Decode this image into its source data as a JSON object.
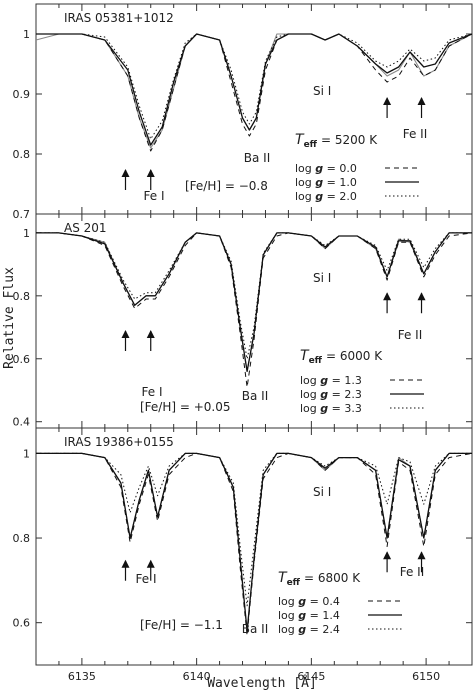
{
  "chart_data": [
    {
      "type": "line",
      "panel_label": "IRAS 05381+1012",
      "xlim": [
        6133,
        6152
      ],
      "ylim": [
        0.7,
        1.05
      ],
      "yticks": [
        0.7,
        0.8,
        0.9,
        1
      ],
      "ytick_labels": [
        "0.7",
        "0.8",
        "0.9",
        "1"
      ],
      "x": [
        6133,
        6134,
        6135,
        6136,
        6137,
        6137.5,
        6138,
        6138.5,
        6139,
        6139.5,
        6140,
        6141,
        6141.5,
        6142,
        6142.3,
        6142.6,
        6143,
        6143.5,
        6144,
        6145,
        6145.6,
        6146.2,
        6147,
        6147.8,
        6148.3,
        6148.8,
        6149.3,
        6149.9,
        6150.4,
        6151,
        6152
      ],
      "series": [
        {
          "name": "observed",
          "values": [
            0.99,
            1.0,
            1.0,
            0.99,
            0.93,
            0.86,
            0.81,
            0.84,
            0.91,
            0.98,
            1.0,
            0.99,
            0.93,
            0.86,
            0.84,
            0.86,
            0.95,
            1.0,
            1.0,
            1.0,
            0.99,
            1.0,
            0.98,
            0.95,
            0.93,
            0.94,
            0.97,
            0.93,
            0.94,
            0.98,
            1.0
          ]
        },
        {
          "name": "log g = 0.0",
          "values": [
            1.0,
            1.0,
            1.0,
            0.99,
            0.93,
            0.86,
            0.805,
            0.84,
            0.91,
            0.98,
            1.0,
            0.99,
            0.92,
            0.85,
            0.83,
            0.85,
            0.94,
            0.99,
            1.0,
            1.0,
            0.99,
            1.0,
            0.98,
            0.94,
            0.92,
            0.93,
            0.96,
            0.93,
            0.94,
            0.98,
            1.0
          ]
        },
        {
          "name": "log g = 1.0",
          "values": [
            1.0,
            1.0,
            1.0,
            0.99,
            0.94,
            0.87,
            0.815,
            0.845,
            0.92,
            0.98,
            1.0,
            0.99,
            0.93,
            0.86,
            0.84,
            0.86,
            0.95,
            0.99,
            1.0,
            1.0,
            0.99,
            1.0,
            0.98,
            0.95,
            0.935,
            0.945,
            0.97,
            0.945,
            0.95,
            0.985,
            1.0
          ]
        },
        {
          "name": "log g = 2.0",
          "values": [
            1.0,
            1.0,
            1.0,
            0.995,
            0.945,
            0.88,
            0.825,
            0.855,
            0.925,
            0.985,
            1.0,
            0.99,
            0.94,
            0.87,
            0.85,
            0.87,
            0.955,
            0.995,
            1.0,
            1.0,
            0.99,
            1.0,
            0.985,
            0.955,
            0.945,
            0.955,
            0.975,
            0.955,
            0.96,
            0.99,
            1.0
          ]
        }
      ],
      "annotations": {
        "si": "Si I",
        "fe1": "Fe I",
        "ba2": "Ba II",
        "fe2": "Fe II",
        "feh": "[Fe/H] = −0.8",
        "teff_label": "T",
        "teff_sub": "eff",
        "teff_value": "= 5200 K",
        "legend": [
          {
            "prefix": "log ",
            "g": "g",
            "value": " = 0.0",
            "style": "dashed"
          },
          {
            "prefix": "log ",
            "g": "g",
            "value": " = 1.0",
            "style": "solid"
          },
          {
            "prefix": "log ",
            "g": "g",
            "value": " = 2.0",
            "style": "dotted"
          }
        ]
      }
    },
    {
      "type": "line",
      "panel_label": "AS 201",
      "xlim": [
        6133,
        6152
      ],
      "ylim": [
        0.38,
        1.06
      ],
      "yticks": [
        0.4,
        0.6,
        0.8,
        1
      ],
      "ytick_labels": [
        "0.4",
        "0.6",
        "0.8",
        "1"
      ],
      "x": [
        6133,
        6134,
        6135,
        6136,
        6136.8,
        6137.3,
        6137.8,
        6138.2,
        6138.8,
        6139.5,
        6140,
        6141,
        6141.5,
        6141.9,
        6142.2,
        6142.5,
        6142.9,
        6143.5,
        6144,
        6145,
        6145.6,
        6146.2,
        6147,
        6147.8,
        6148.3,
        6148.8,
        6149.3,
        6149.9,
        6150.4,
        6151,
        6152
      ],
      "series": [
        {
          "name": "observed",
          "values": [
            1.0,
            1.0,
            0.99,
            0.97,
            0.84,
            0.77,
            0.8,
            0.8,
            0.87,
            0.97,
            1.0,
            0.99,
            0.9,
            0.7,
            0.56,
            0.68,
            0.93,
            1.0,
            1.0,
            0.99,
            0.95,
            0.99,
            0.99,
            0.95,
            0.86,
            0.98,
            0.97,
            0.87,
            0.94,
            1.0,
            1.0
          ]
        },
        {
          "name": "log g = 1.3",
          "values": [
            1.0,
            1.0,
            0.99,
            0.96,
            0.83,
            0.76,
            0.79,
            0.79,
            0.86,
            0.96,
            1.0,
            0.99,
            0.89,
            0.68,
            0.51,
            0.66,
            0.92,
            0.99,
            1.0,
            0.99,
            0.95,
            0.99,
            0.99,
            0.95,
            0.85,
            0.97,
            0.97,
            0.86,
            0.93,
            0.99,
            1.0
          ]
        },
        {
          "name": "log g = 2.3",
          "values": [
            1.0,
            1.0,
            0.99,
            0.965,
            0.84,
            0.77,
            0.8,
            0.8,
            0.87,
            0.97,
            1.0,
            0.99,
            0.9,
            0.7,
            0.56,
            0.68,
            0.93,
            1.0,
            1.0,
            0.99,
            0.955,
            0.99,
            0.99,
            0.955,
            0.86,
            0.975,
            0.975,
            0.87,
            0.94,
            1.0,
            1.0
          ]
        },
        {
          "name": "log g = 3.3",
          "values": [
            1.0,
            1.0,
            0.99,
            0.97,
            0.85,
            0.79,
            0.81,
            0.81,
            0.88,
            0.97,
            1.0,
            0.99,
            0.91,
            0.72,
            0.6,
            0.7,
            0.935,
            1.0,
            1.0,
            0.99,
            0.96,
            0.99,
            0.99,
            0.96,
            0.88,
            0.98,
            0.98,
            0.89,
            0.95,
            1.0,
            1.0
          ]
        }
      ],
      "annotations": {
        "si": "Si I",
        "fe1": "Fe I",
        "ba2": "Ba II",
        "fe2": "Fe II",
        "feh": "[Fe/H] = +0.05",
        "teff_label": "T",
        "teff_sub": "eff",
        "teff_value": "= 6000 K",
        "legend": [
          {
            "prefix": "log ",
            "g": "g",
            "value": " = 1.3",
            "style": "dashed"
          },
          {
            "prefix": "log ",
            "g": "g",
            "value": " = 2.3",
            "style": "solid"
          },
          {
            "prefix": "log ",
            "g": "g",
            "value": " = 3.3",
            "style": "dotted"
          }
        ]
      }
    },
    {
      "type": "line",
      "panel_label": "IRAS 19386+0155",
      "xlim": [
        6133,
        6152
      ],
      "ylim": [
        0.5,
        1.06
      ],
      "yticks": [
        0.6,
        0.8,
        1
      ],
      "ytick_labels": [
        "0.6",
        "0.8",
        "1"
      ],
      "x": [
        6133,
        6134,
        6135,
        6136,
        6136.7,
        6137.1,
        6137.5,
        6137.9,
        6138.3,
        6138.8,
        6139.5,
        6140,
        6141,
        6141.6,
        6141.9,
        6142.2,
        6142.5,
        6142.9,
        6143.5,
        6144,
        6145,
        6145.6,
        6146.2,
        6147,
        6147.8,
        6148.3,
        6148.8,
        6149.3,
        6149.9,
        6150.4,
        6151,
        6152
      ],
      "series": [
        {
          "name": "observed",
          "values": [
            1.0,
            1.0,
            1.0,
            0.99,
            0.93,
            0.8,
            0.89,
            0.96,
            0.85,
            0.96,
            1.0,
            1.0,
            0.99,
            0.92,
            0.75,
            0.58,
            0.75,
            0.95,
            1.0,
            1.0,
            0.99,
            0.96,
            0.99,
            0.99,
            0.96,
            0.8,
            0.99,
            0.97,
            0.8,
            0.96,
            1.0,
            1.0
          ]
        },
        {
          "name": "log g = 0.4",
          "values": [
            1.0,
            1.0,
            1.0,
            0.99,
            0.92,
            0.79,
            0.88,
            0.95,
            0.84,
            0.95,
            0.99,
            1.0,
            0.99,
            0.91,
            0.73,
            0.57,
            0.74,
            0.94,
            0.99,
            1.0,
            0.99,
            0.96,
            0.99,
            0.99,
            0.95,
            0.78,
            0.98,
            0.96,
            0.78,
            0.95,
            0.99,
            1.0
          ]
        },
        {
          "name": "log g = 1.4",
          "values": [
            1.0,
            1.0,
            1.0,
            0.99,
            0.93,
            0.8,
            0.89,
            0.96,
            0.85,
            0.96,
            1.0,
            1.0,
            0.99,
            0.92,
            0.75,
            0.58,
            0.75,
            0.95,
            1.0,
            1.0,
            0.99,
            0.965,
            0.99,
            0.99,
            0.96,
            0.8,
            0.985,
            0.97,
            0.8,
            0.96,
            1.0,
            1.0
          ]
        },
        {
          "name": "log g = 2.4",
          "values": [
            1.0,
            1.0,
            1.0,
            0.99,
            0.95,
            0.86,
            0.92,
            0.97,
            0.9,
            0.97,
            1.0,
            1.0,
            0.99,
            0.93,
            0.78,
            0.64,
            0.78,
            0.96,
            1.0,
            1.0,
            0.99,
            0.97,
            0.99,
            0.99,
            0.97,
            0.88,
            0.99,
            0.98,
            0.88,
            0.97,
            1.0,
            1.0
          ]
        }
      ],
      "annotations": {
        "si": "Si I",
        "fe1": "Fe I",
        "ba2": "Ba II",
        "fe2": "Fe II",
        "feh": "[Fe/H] = −1.1",
        "teff_label": "T",
        "teff_sub": "eff",
        "teff_value": "= 6800 K",
        "legend": [
          {
            "prefix": "log ",
            "g": "g",
            "value": " = 0.4",
            "style": "dashed"
          },
          {
            "prefix": "log ",
            "g": "g",
            "value": " = 1.4",
            "style": "solid"
          },
          {
            "prefix": "log ",
            "g": "g",
            "value": " = 2.4",
            "style": "dotted"
          }
        ]
      }
    }
  ],
  "axes": {
    "xticks": [
      6135,
      6140,
      6145,
      6150
    ],
    "xtick_labels": [
      "6135",
      "6140",
      "6145",
      "6150"
    ],
    "xlabel": "Wavelength [Å]",
    "ylabel": "Relative  Flux"
  },
  "colors": {
    "observed": "#8a8a8a",
    "model": "#111111",
    "axis": "#333333"
  }
}
